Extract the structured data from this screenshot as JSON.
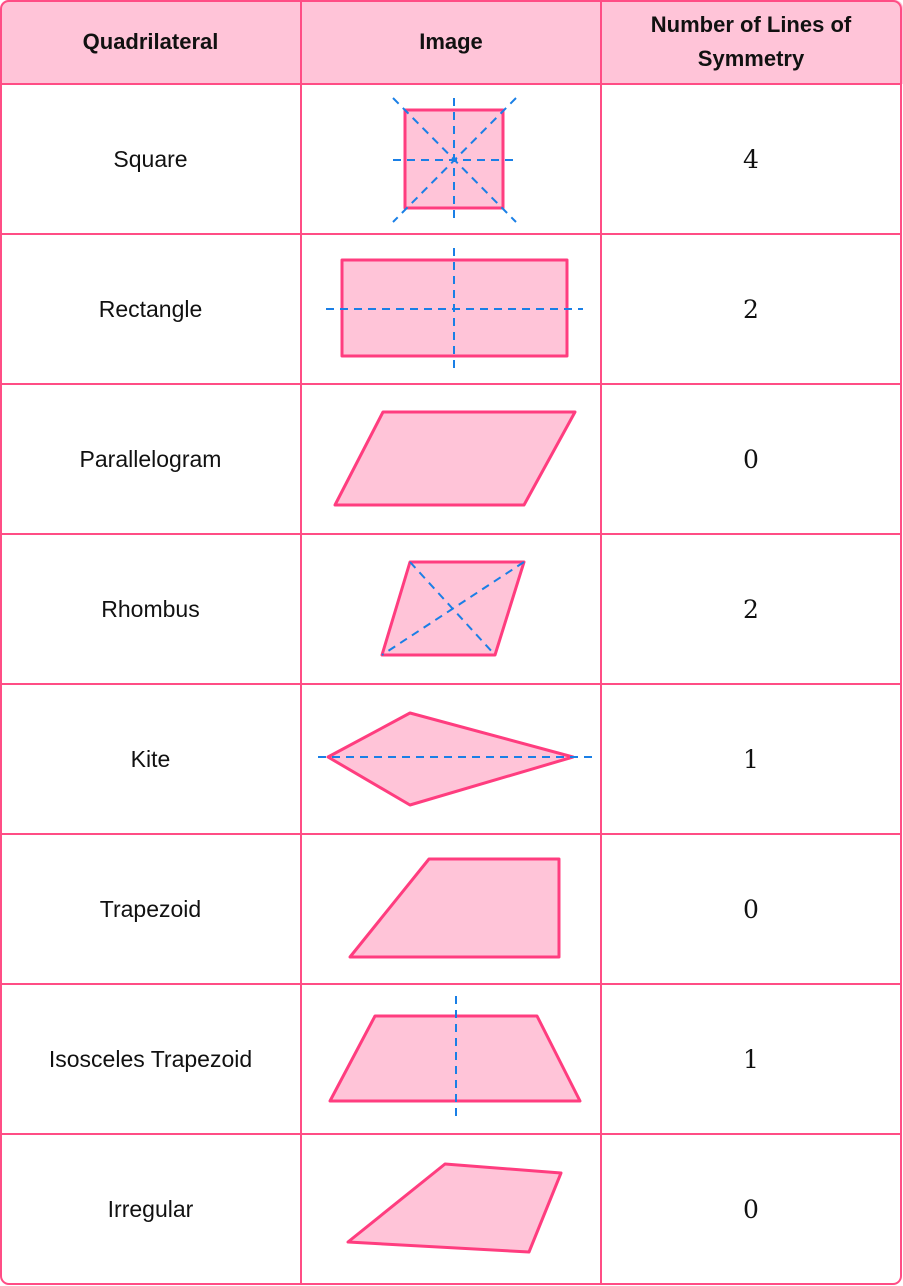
{
  "headers": {
    "quadrilateral": "Quadrilateral",
    "image": "Image",
    "lines": "Number of Lines of Symmetry"
  },
  "rows": [
    {
      "name": "Square",
      "lines": "4"
    },
    {
      "name": "Rectangle",
      "lines": "2"
    },
    {
      "name": "Parallelogram",
      "lines": "0"
    },
    {
      "name": "Rhombus",
      "lines": "2"
    },
    {
      "name": "Kite",
      "lines": "1"
    },
    {
      "name": "Trapezoid",
      "lines": "0"
    },
    {
      "name": "Isosceles Trapezoid",
      "lines": "1"
    },
    {
      "name": "Irregular",
      "lines": "0"
    }
  ],
  "colors": {
    "border": "#ff4d85",
    "header_fill": "#ffc4d8",
    "shape_fill": "#ffc4d8",
    "symmetry_line": "#1a7fe6"
  }
}
